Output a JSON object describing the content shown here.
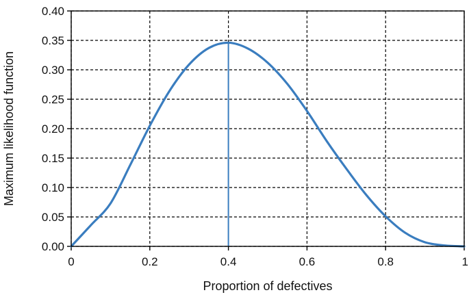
{
  "chart_data": {
    "type": "line",
    "xlabel": "Proportion of defectives",
    "ylabel": "Maximum likelihood function",
    "xlim": [
      0,
      1
    ],
    "ylim": [
      0,
      0.4
    ],
    "x_ticks": [
      "0",
      "0.2",
      "0.4",
      "0.6",
      "0.8",
      "1"
    ],
    "y_ticks": [
      "0.00",
      "0.05",
      "0.10",
      "0.15",
      "0.20",
      "0.25",
      "0.30",
      "0.35",
      "0.40"
    ],
    "grid": true,
    "series": [
      {
        "color": "#3a7dbf",
        "x": [
          0,
          0.05,
          0.1,
          0.15,
          0.2,
          0.25,
          0.3,
          0.35,
          0.4,
          0.45,
          0.5,
          0.55,
          0.6,
          0.65,
          0.7,
          0.75,
          0.8,
          0.85,
          0.9,
          0.95,
          1.0
        ],
        "y": [
          0,
          0.036,
          0.073,
          0.138,
          0.205,
          0.264,
          0.309,
          0.337,
          0.346,
          0.336,
          0.312,
          0.276,
          0.23,
          0.179,
          0.132,
          0.088,
          0.051,
          0.023,
          0.007,
          0.0015,
          0
        ]
      }
    ],
    "annotations": [
      {
        "type": "vertical-line",
        "x": 0.4,
        "y_top": 0.346,
        "color": "#3a7dbf"
      }
    ]
  }
}
